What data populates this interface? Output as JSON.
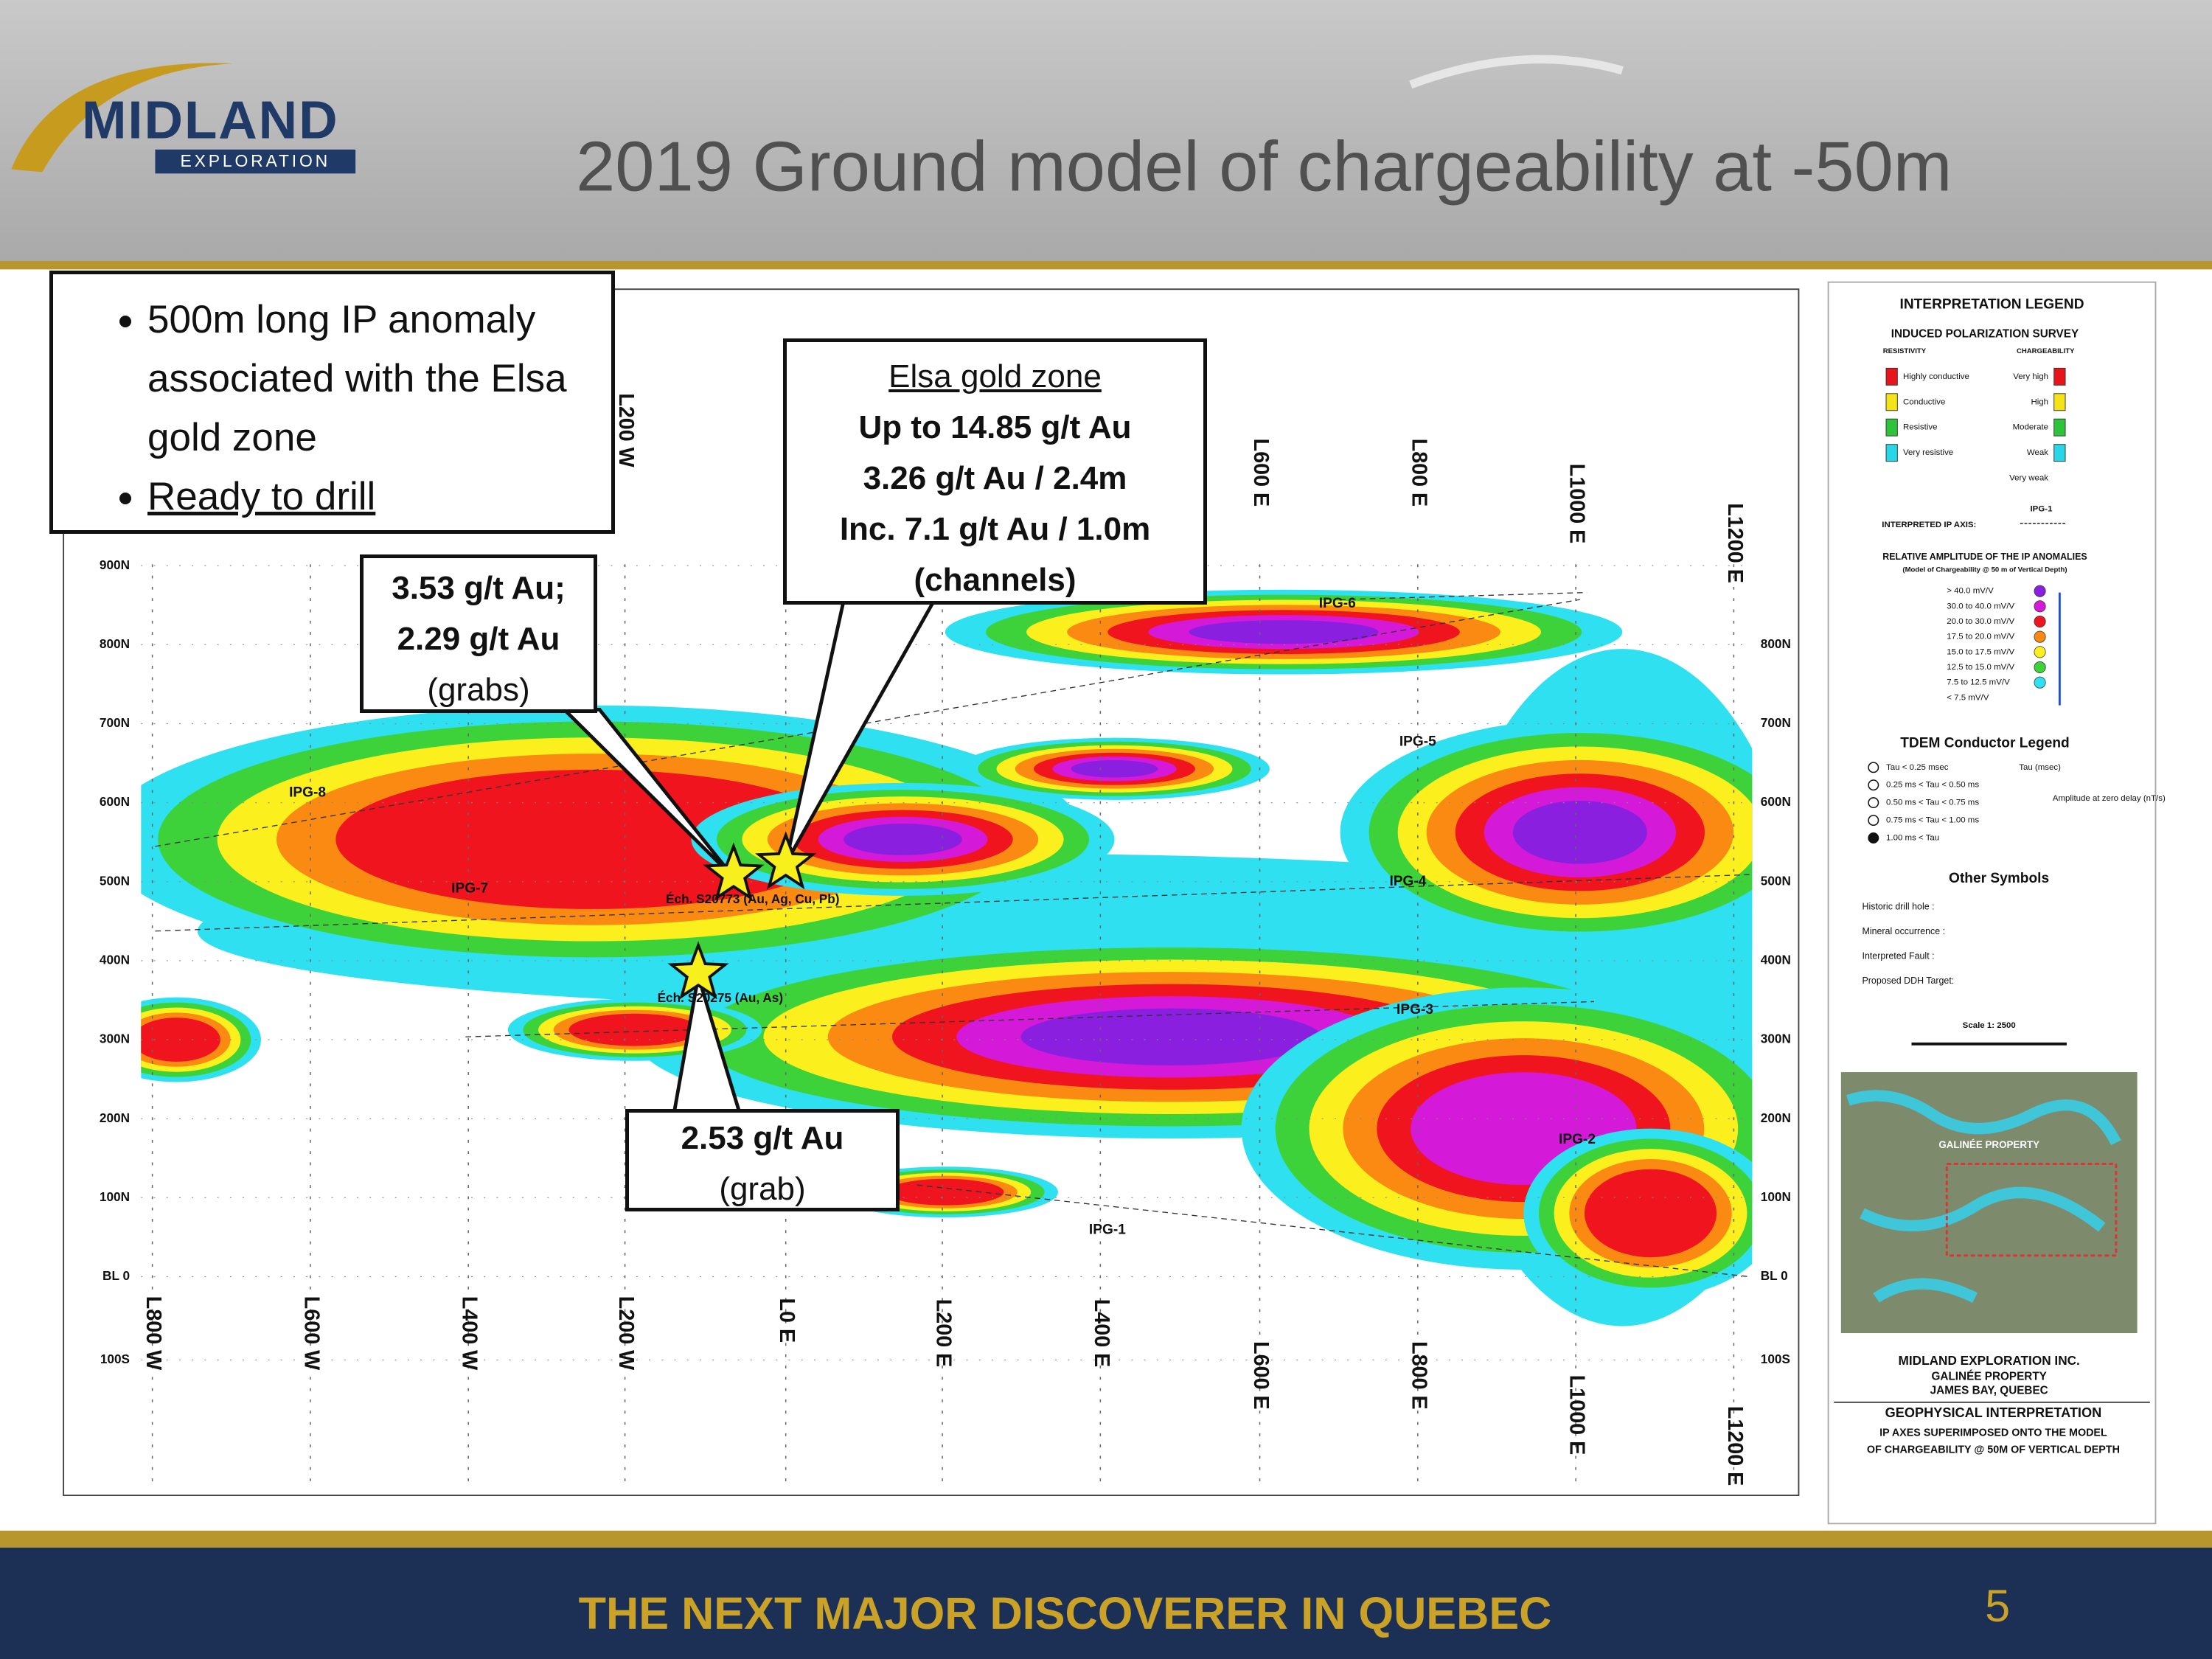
{
  "header": {
    "logo_name": "MIDLAND",
    "logo_tagline": "EXPLORATION",
    "title": "2019 Ground model of chargeability at -50m"
  },
  "summary": {
    "bullets": [
      "500m long IP anomaly associated with the Elsa gold zone",
      "Ready to drill"
    ]
  },
  "callouts": {
    "elsa": {
      "heading": "Elsa gold zone",
      "lines": [
        "Up to 14.85 g/t Au",
        "3.26 g/t Au / 2.4m",
        "Inc. 7.1 g/t Au / 1.0m",
        "(channels)"
      ]
    },
    "grabs": {
      "lines": [
        "3.53 g/t Au;",
        "2.29 g/t Au"
      ],
      "note": "(grabs)"
    },
    "grab": {
      "lines": [
        "2.53 g/t Au"
      ],
      "note": "(grab)"
    }
  },
  "map": {
    "northings": [
      "900N",
      "800N",
      "700N",
      "600N",
      "500N",
      "400N",
      "300N",
      "200N",
      "100N",
      "BL 0",
      "100S"
    ],
    "lines_north": [
      "L200 W",
      "L600 E",
      "L800 E",
      "L1000 E",
      "L1200 E"
    ],
    "lines_south": [
      "L800 W",
      "L600 W",
      "L400 W",
      "L200 W",
      "L0 E",
      "L200 E",
      "L400 E",
      "L600 E",
      "L800 E",
      "L1000 E",
      "L1200 E"
    ],
    "ip_axes": [
      "IPG-1",
      "IPG-2",
      "IPG-3",
      "IPG-4",
      "IPG-5",
      "IPG-6",
      "IPG-7",
      "IPG-8"
    ],
    "samples": [
      "Éch. S20773 (Au, Ag, Cu, Pb)",
      "Éch. S20275 (Au, As)"
    ]
  },
  "legend": {
    "title": "INTERPRETATION LEGEND",
    "survey": "INDUCED POLARIZATION SURVEY",
    "col_resistivity": "RESISTIVITY",
    "col_chargeability": "CHARGEABILITY",
    "classes": [
      {
        "resistivity": "Highly conductive",
        "chargeability": "Very high",
        "color": "#e8141b"
      },
      {
        "resistivity": "Conductive",
        "chargeability": "High",
        "color": "#f5e31a"
      },
      {
        "resistivity": "Resistive",
        "chargeability": "Moderate",
        "color": "#2ec43a"
      },
      {
        "resistivity": "Very resistive",
        "chargeability": "Weak",
        "color": "#27d7e8"
      }
    ],
    "very_weak": "Very weak",
    "axis_label": "INTERPRETED IP AXIS:",
    "axis_example": "IPG-1",
    "amplitude_title": "RELATIVE AMPLITUDE OF THE IP ANOMALIES",
    "amplitude_subtitle": "(Model of Chargeability @ 50 m of Vertical Depth)",
    "amplitude": [
      {
        "label": "> 40.0 mV/V",
        "color": "#8a1fe0"
      },
      {
        "label": "30.0 to 40.0 mV/V",
        "color": "#d41ad8"
      },
      {
        "label": "20.0 to 30.0 mV/V",
        "color": "#f0141e"
      },
      {
        "label": "17.5 to 20.0 mV/V",
        "color": "#fa8a12"
      },
      {
        "label": "15.0 to 17.5 mV/V",
        "color": "#fbf01e"
      },
      {
        "label": "12.5 to 15.0 mV/V",
        "color": "#3ed23a"
      },
      {
        "label": "7.5 to 12.5 mV/V",
        "color": "#2ee0f0"
      },
      {
        "label": "< 7.5 mV/V",
        "color": "#ffffff"
      }
    ],
    "tdem_title": "TDEM Conductor Legend",
    "tdem": [
      "Tau < 0.25 msec",
      "0.25 ms < Tau < 0.50 ms",
      "0.50 ms < Tau < 0.75 ms",
      "0.75 ms < Tau < 1.00 ms",
      "1.00 ms < Tau"
    ],
    "tdem_tau": "Tau (msec)",
    "tdem_amplitude": "Amplitude at zero delay (nT/s)",
    "other_title": "Other Symbols",
    "other": [
      "Historic drill hole :",
      "Mineral occurrence :",
      "Interpreted Fault :",
      "Proposed DDH Target:"
    ],
    "scale": "Scale 1: 2500",
    "inset": "GALINÉE PROPERTY"
  },
  "title_block": {
    "company": "MIDLAND EXPLORATION INC.",
    "property": "GALINÉE PROPERTY",
    "location": "JAMES BAY, QUEBEC",
    "heading": "GEOPHYSICAL INTERPRETATION",
    "description": [
      "IP AXES SUPERIMPOSED ONTO THE MODEL",
      "OF CHARGEABILITY @ 50M OF VERTICAL DEPTH"
    ]
  },
  "footer": {
    "tagline": "THE NEXT MAJOR DISCOVERER IN QUEBEC",
    "page": "5"
  }
}
